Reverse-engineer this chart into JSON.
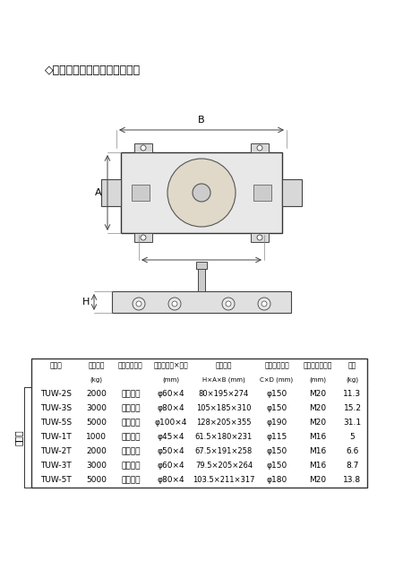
{
  "title": "◇オレンジローラー仕様一覧表",
  "bg_color": "#f0f0f0",
  "table_headers": [
    "型　式",
    "呼称荷重\n(kg)",
    "ローラー材質",
    "ローラー径×個数\n(mm)",
    "本体寸法\nH×A×B (mm)",
    "テーブル寸法\nC×D (mm)",
    "テーブルネジ径\n(mm)",
    "質量\n(kg)"
  ],
  "row_label": "ダブル",
  "table_data": [
    [
      "TUW-2S",
      "2000",
      "ウレタン",
      "φ60×4",
      "80×195×274",
      "φ150",
      "M20",
      "11.3"
    ],
    [
      "TUW-3S",
      "3000",
      "ウレタン",
      "φ80×4",
      "105×185×310",
      "φ150",
      "M20",
      "15.2"
    ],
    [
      "TUW-5S",
      "5000",
      "ウレタン",
      "φ100×4",
      "128×205×355",
      "φ190",
      "M20",
      "31.1"
    ],
    [
      "TUW-1T",
      "1000",
      "ウレタン",
      "φ45×4",
      "61.5×180×231",
      "φ115",
      "M16",
      "5"
    ],
    [
      "TUW-2T",
      "2000",
      "ウレタン",
      "φ50×4",
      "67.5×191×258",
      "φ150",
      "M16",
      "6.6"
    ],
    [
      "TUW-3T",
      "3000",
      "ウレタン",
      "φ60×4",
      "79.5×205×264",
      "φ150",
      "M16",
      "8.7"
    ],
    [
      "TUW-5T",
      "5000",
      "ウレタン",
      "φ80×4",
      "103.5×211×317",
      "φ180",
      "M20",
      "13.8"
    ]
  ]
}
